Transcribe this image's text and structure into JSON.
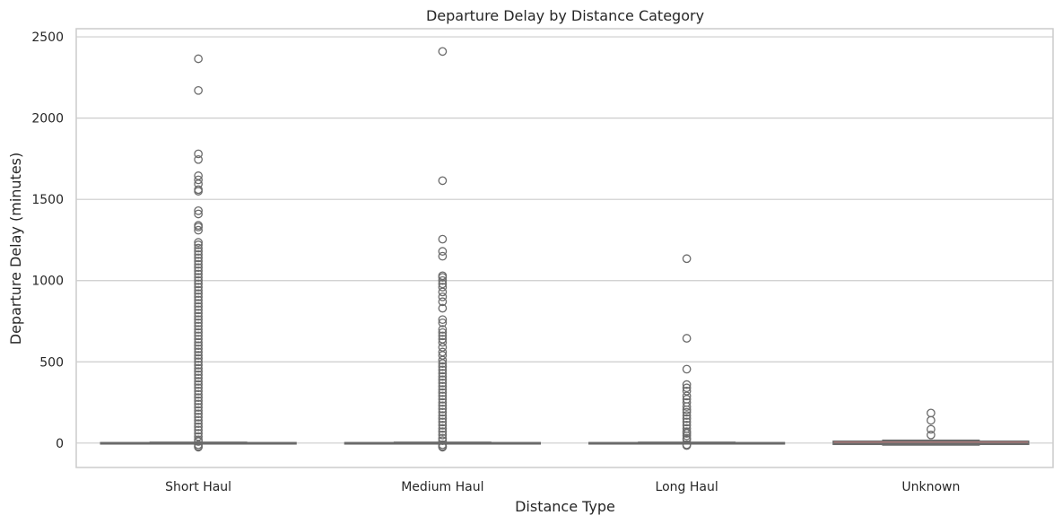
{
  "chart_data": {
    "type": "box",
    "title": "Departure Delay by Distance Category",
    "xlabel": "Distance Type",
    "ylabel": "Departure Delay (minutes)",
    "ylim": [
      -150,
      2550
    ],
    "yticks": [
      0,
      500,
      1000,
      1500,
      2000,
      2500
    ],
    "grid": "horizontal",
    "categories": [
      "Short Haul",
      "Medium Haul",
      "Long Haul",
      "Unknown"
    ],
    "colors": {
      "box_edge": "#6b6b6b",
      "box_fill": [
        "#6b6b6b",
        "#6b6b6b",
        "#6b6b6b",
        "#e08585"
      ],
      "grid": "#cccccc",
      "frame": "#cccccc",
      "text": "#262626"
    },
    "boxes": [
      {
        "category": "Short Haul",
        "q1": -2,
        "median": 0,
        "q3": 3,
        "whisker_low": -5,
        "whisker_high": 5,
        "outliers": [
          2365,
          2170,
          1780,
          1745,
          1645,
          1620,
          1595,
          1560,
          1550,
          1430,
          1410,
          1340,
          1330,
          1310,
          1235,
          1220,
          1200,
          1180,
          1160,
          1140,
          1120,
          1100,
          1080,
          1060,
          1040,
          1020,
          1000,
          980,
          960,
          940,
          920,
          900,
          880,
          860,
          840,
          820,
          800,
          780,
          760,
          740,
          720,
          700,
          680,
          660,
          640,
          620,
          600,
          580,
          560,
          540,
          520,
          500,
          480,
          460,
          440,
          420,
          400,
          380,
          360,
          340,
          320,
          300,
          280,
          260,
          240,
          220,
          200,
          180,
          160,
          140,
          120,
          100,
          80,
          60,
          40,
          20,
          10,
          -10,
          -20,
          -25
        ]
      },
      {
        "category": "Medium Haul",
        "q1": -2,
        "median": 0,
        "q3": 3,
        "whisker_low": -5,
        "whisker_high": 5,
        "outliers": [
          2410,
          1615,
          1255,
          1180,
          1150,
          1030,
          1020,
          1000,
          980,
          960,
          930,
          900,
          870,
          830,
          760,
          740,
          700,
          680,
          660,
          640,
          620,
          590,
          560,
          540,
          510,
          490,
          470,
          450,
          430,
          410,
          390,
          370,
          350,
          330,
          310,
          290,
          270,
          250,
          230,
          210,
          190,
          170,
          150,
          130,
          110,
          90,
          70,
          50,
          30,
          15,
          -10,
          -20,
          -25
        ]
      },
      {
        "category": "Long Haul",
        "q1": -2,
        "median": 0,
        "q3": 3,
        "whisker_low": -5,
        "whisker_high": 5,
        "outliers": [
          1135,
          645,
          455,
          360,
          340,
          320,
          290,
          270,
          250,
          225,
          205,
          190,
          170,
          150,
          130,
          110,
          90,
          70,
          60,
          45,
          30,
          20,
          -10,
          -15
        ]
      },
      {
        "category": "Unknown",
        "q1": -8,
        "median": -2,
        "q3": 12,
        "whisker_low": -12,
        "whisker_high": 18,
        "outliers": [
          185,
          140,
          85,
          50
        ]
      }
    ]
  }
}
